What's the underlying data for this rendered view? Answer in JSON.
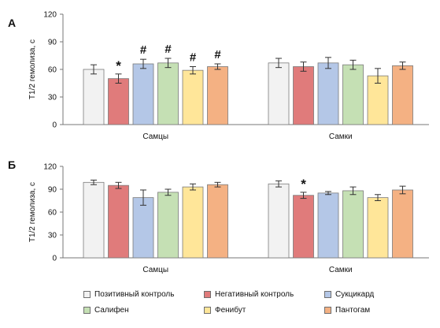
{
  "chart_data": [
    {
      "type": "bar",
      "panel_label": "А",
      "ylabel": "T1/2 гемолиза, с",
      "ylim": [
        0,
        120
      ],
      "yticks": [
        0,
        30,
        60,
        90,
        120
      ],
      "categories": [
        "Самцы",
        "Самки"
      ],
      "series": [
        {
          "name": "Позитивный контроль",
          "color": "#f2f2f2",
          "values": [
            60,
            67
          ],
          "errors": [
            5,
            5
          ],
          "marks": [
            "",
            ""
          ]
        },
        {
          "name": "Негативный контроль",
          "color": "#e07b7b",
          "values": [
            50,
            63
          ],
          "errors": [
            5,
            5
          ],
          "marks": [
            "*",
            ""
          ]
        },
        {
          "name": "Сукцикард",
          "color": "#b4c7e7",
          "values": [
            66,
            67
          ],
          "errors": [
            5,
            6
          ],
          "marks": [
            "#",
            ""
          ]
        },
        {
          "name": "Салифен",
          "color": "#c5e0b4",
          "values": [
            67,
            65
          ],
          "errors": [
            5,
            5
          ],
          "marks": [
            "#",
            ""
          ]
        },
        {
          "name": "Фенибут",
          "color": "#ffe699",
          "values": [
            59,
            53
          ],
          "errors": [
            4,
            8
          ],
          "marks": [
            "#",
            ""
          ]
        },
        {
          "name": "Пантогам",
          "color": "#f4b183",
          "values": [
            63,
            64
          ],
          "errors": [
            3,
            4
          ],
          "marks": [
            "#",
            ""
          ]
        }
      ]
    },
    {
      "type": "bar",
      "panel_label": "Б",
      "ylabel": "T1/2 гемолиза, с",
      "ylim": [
        0,
        120
      ],
      "yticks": [
        0,
        30,
        60,
        90,
        120
      ],
      "categories": [
        "Самцы",
        "Самки"
      ],
      "series": [
        {
          "name": "Позитивный контроль",
          "color": "#f2f2f2",
          "values": [
            99,
            97
          ],
          "errors": [
            3,
            4
          ],
          "marks": [
            "",
            ""
          ]
        },
        {
          "name": "Негативный контроль",
          "color": "#e07b7b",
          "values": [
            95,
            82
          ],
          "errors": [
            4,
            4
          ],
          "marks": [
            "",
            "*"
          ]
        },
        {
          "name": "Сукцикард",
          "color": "#b4c7e7",
          "values": [
            79,
            85
          ],
          "errors": [
            10,
            2
          ],
          "marks": [
            "",
            ""
          ]
        },
        {
          "name": "Салифен",
          "color": "#c5e0b4",
          "values": [
            86,
            88
          ],
          "errors": [
            4,
            5
          ],
          "marks": [
            "",
            ""
          ]
        },
        {
          "name": "Фенибут",
          "color": "#ffe699",
          "values": [
            93,
            79
          ],
          "errors": [
            4,
            4
          ],
          "marks": [
            "",
            ""
          ]
        },
        {
          "name": "Пантогам",
          "color": "#f4b183",
          "values": [
            96,
            89
          ],
          "errors": [
            3,
            5
          ],
          "marks": [
            "",
            ""
          ]
        }
      ]
    }
  ],
  "legend": [
    {
      "label": "Позитивный контроль",
      "color": "#f2f2f2"
    },
    {
      "label": "Негативный контроль",
      "color": "#e07b7b"
    },
    {
      "label": "Сукцикард",
      "color": "#b4c7e7"
    },
    {
      "label": "Салифен",
      "color": "#c5e0b4"
    },
    {
      "label": "Фенибут",
      "color": "#ffe699"
    },
    {
      "label": "Пантогам",
      "color": "#f4b183"
    }
  ]
}
